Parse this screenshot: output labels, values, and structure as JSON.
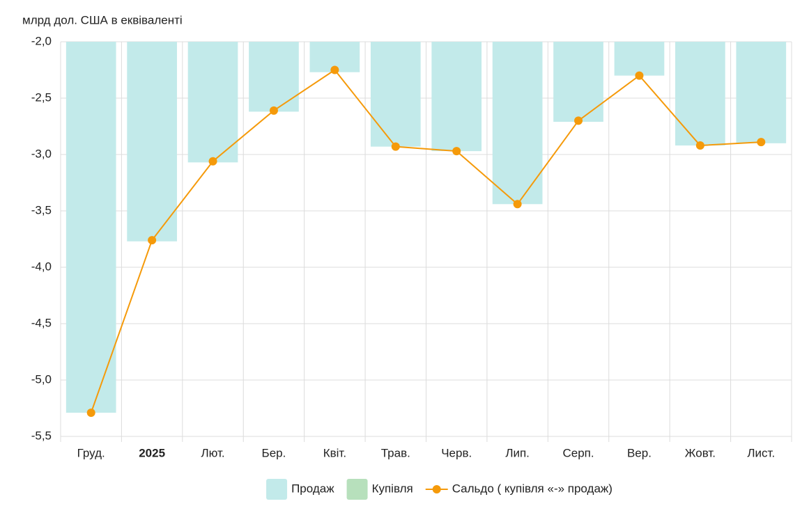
{
  "chart_data": {
    "type": "bar_line",
    "y_label": "млрд дол. США в еквіваленті",
    "categories": [
      "Груд.",
      "2025",
      "Лют.",
      "Бер.",
      "Квіт.",
      "Трав.",
      "Черв.",
      "Лип.",
      "Серп.",
      "Вер.",
      "Жовт.",
      "Лист."
    ],
    "series": [
      {
        "name": "Продаж",
        "type": "bar",
        "color": "#c2eaea",
        "values": [
          -5.29,
          -3.77,
          -3.07,
          -2.62,
          -2.27,
          -2.93,
          -2.97,
          -3.44,
          -2.71,
          -2.3,
          -2.92,
          -2.9
        ]
      },
      {
        "name": "Купівля",
        "type": "bar",
        "color": "#b7e0bc",
        "values": [
          null,
          null,
          null,
          null,
          null,
          null,
          null,
          null,
          null,
          null,
          null,
          null
        ]
      },
      {
        "name": "Сальдо ( купівля «-» продаж)",
        "type": "line",
        "color": "#f59a0a",
        "values": [
          -5.29,
          -3.76,
          -3.06,
          -2.61,
          -2.25,
          -2.93,
          -2.97,
          -3.44,
          -2.7,
          -2.3,
          -2.92,
          -2.89
        ]
      }
    ],
    "ylim": [
      -5.5,
      -2
    ],
    "yticks": [
      {
        "value": -2,
        "label": "-2,0"
      },
      {
        "value": -2.5,
        "label": "-2,5"
      },
      {
        "value": -3,
        "label": "-3,0"
      },
      {
        "value": -3.5,
        "label": "-3,5"
      },
      {
        "value": -4,
        "label": "-4,0"
      },
      {
        "value": -4.5,
        "label": "-4,5"
      },
      {
        "value": -5,
        "label": "-5,0"
      },
      {
        "value": -5.5,
        "label": "-5,5"
      }
    ],
    "grid": true,
    "legend": "bottom"
  }
}
